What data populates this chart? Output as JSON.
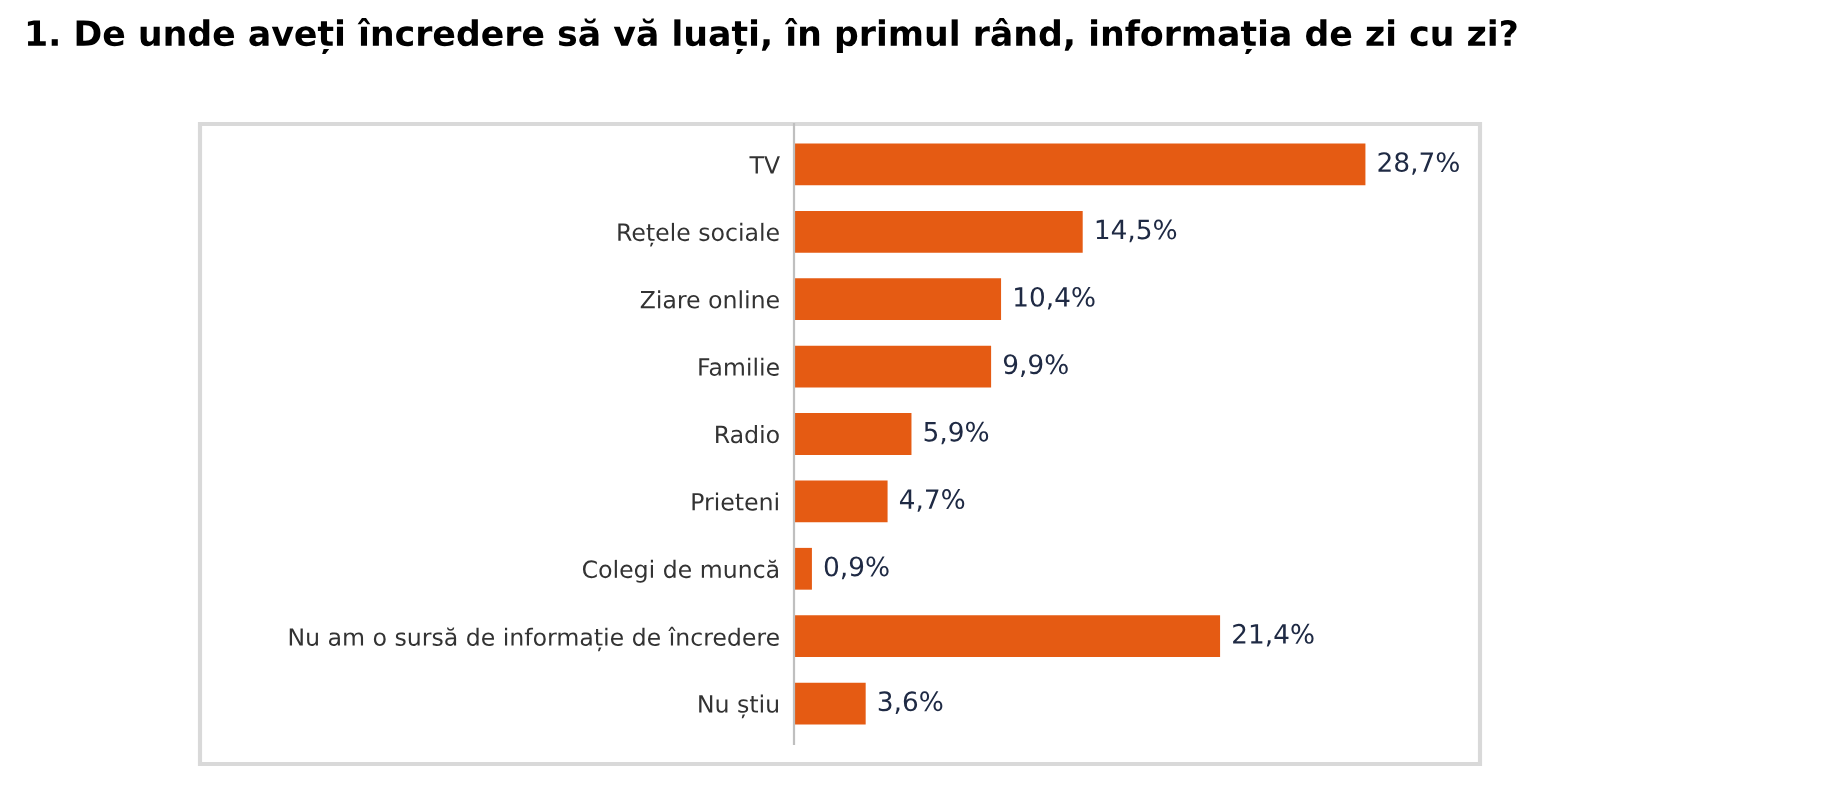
{
  "chart_data": {
    "type": "bar",
    "orientation": "horizontal",
    "title": "1. De unde aveți încredere să vă luați, în primul rând, informația de zi cu zi?",
    "categories": [
      "TV",
      "Rețele sociale",
      "Ziare online",
      "Familie",
      "Radio",
      "Prieteni",
      "Colegi de muncă",
      "Nu am o sursă de informație de încredere",
      "Nu știu"
    ],
    "values": [
      28.7,
      14.5,
      10.4,
      9.9,
      5.9,
      4.7,
      0.9,
      21.4,
      3.6
    ],
    "value_labels": [
      "28,7%",
      "14,5%",
      "10,4%",
      "9,9%",
      "5,9%",
      "4,7%",
      "0,9%",
      "21,4%",
      "3,6%"
    ],
    "color": "#e55b13",
    "grid": false,
    "legend": false
  }
}
